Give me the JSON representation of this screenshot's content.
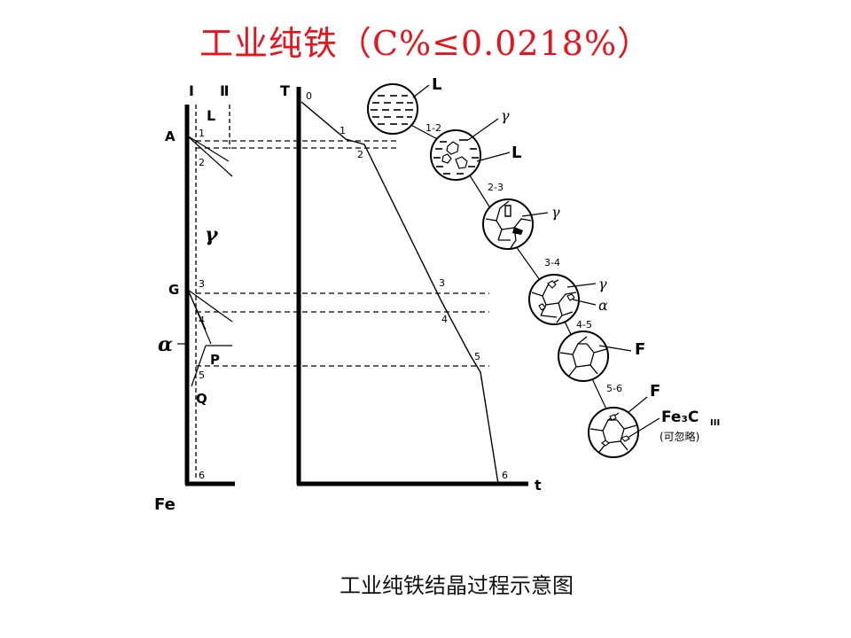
{
  "title": "工业纯铁（C%≤0.0218%）",
  "caption": "工业纯铁结晶过程示意图",
  "phase_diagram": {
    "col_I": "I",
    "col_II": "Ⅱ",
    "region_L": "L",
    "region_gamma": "γ",
    "region_alpha": "α",
    "pt_A": "A",
    "pt_G": "G",
    "pt_P": "P",
    "pt_Q": "Q",
    "component": "Fe",
    "n1": "1",
    "n2": "2",
    "n3": "3",
    "n4": "4",
    "n5": "5",
    "n6": "6"
  },
  "cooling_curve": {
    "y_axis": "T",
    "x_axis": "t",
    "n0": "0",
    "n1": "1",
    "n2": "2",
    "n3": "3",
    "n4": "4",
    "n5": "5",
    "n6": "6"
  },
  "microstructures": {
    "label_L": "L",
    "step_12": "1-2",
    "label_gamma1": "γ",
    "label_L2": "L",
    "step_23": "2-3",
    "label_gamma2": "γ",
    "step_34": "3-4",
    "label_gamma3": "γ",
    "label_alpha": "α",
    "step_45": "4-5",
    "label_F1": "F",
    "step_56": "5-6",
    "label_F2": "F",
    "label_fe3c_main": "Fe₃C",
    "label_fe3c_sub": "III",
    "label_negligible": "(可忽略)"
  },
  "colors": {
    "title": "#e8141b",
    "ink": "#000000",
    "background": "#ffffff"
  }
}
